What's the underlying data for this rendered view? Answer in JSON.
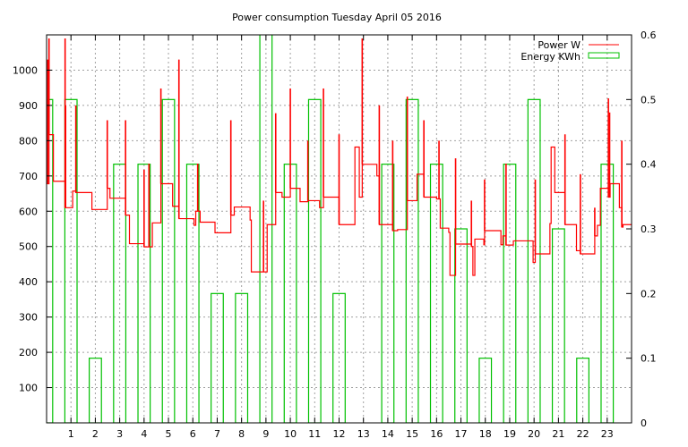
{
  "chart_data": {
    "type": "line",
    "title": "Power consumption Tuesday April 05 2016",
    "xlabel": "",
    "ylabel": "",
    "xlim": [
      0,
      24
    ],
    "ylim": [
      0,
      1100
    ],
    "y2lim": [
      0,
      0.6
    ],
    "grid": true,
    "legend_position": "top-right",
    "x_ticks": [
      "1",
      "2",
      "3",
      "4",
      "5",
      "6",
      "7",
      "8",
      "9",
      "10",
      "11",
      "12",
      "13",
      "14",
      "15",
      "16",
      "17",
      "18",
      "19",
      "20",
      "21",
      "22",
      "23"
    ],
    "y_ticks": [
      "100",
      "200",
      "300",
      "400",
      "500",
      "600",
      "700",
      "800",
      "900",
      "1000"
    ],
    "y2_ticks": [
      "0",
      "0.1",
      "0.2",
      "0.3",
      "0.4",
      "0.5",
      "0.6"
    ],
    "series": [
      {
        "name": "Power W",
        "color": "#ff0000",
        "axis": "left",
        "style": "steps",
        "steps": [
          [
            0,
            678
          ],
          [
            0.1,
            817
          ],
          [
            0.28,
            685
          ],
          [
            0.76,
            610
          ],
          [
            1.07,
            657
          ],
          [
            1.2,
            653
          ],
          [
            1.86,
            605
          ],
          [
            2.49,
            665
          ],
          [
            2.6,
            637
          ],
          [
            3.24,
            589
          ],
          [
            3.4,
            508
          ],
          [
            4.0,
            499
          ],
          [
            4.34,
            567
          ],
          [
            4.69,
            678
          ],
          [
            5.17,
            614
          ],
          [
            5.43,
            579
          ],
          [
            6.05,
            560
          ],
          [
            6.12,
            600
          ],
          [
            6.3,
            569
          ],
          [
            6.91,
            539
          ],
          [
            7.56,
            589
          ],
          [
            7.7,
            612
          ],
          [
            8.35,
            575
          ],
          [
            8.4,
            428
          ],
          [
            9.05,
            562
          ],
          [
            9.4,
            653
          ],
          [
            9.66,
            640
          ],
          [
            10.0,
            665
          ],
          [
            10.4,
            627
          ],
          [
            10.72,
            630
          ],
          [
            11.2,
            610
          ],
          [
            11.36,
            640
          ],
          [
            12.0,
            562
          ],
          [
            12.65,
            782
          ],
          [
            12.83,
            640
          ],
          [
            12.95,
            733
          ],
          [
            13.55,
            700
          ],
          [
            13.65,
            562
          ],
          [
            14.2,
            545
          ],
          [
            14.4,
            548
          ],
          [
            14.8,
            630
          ],
          [
            15.2,
            705
          ],
          [
            15.48,
            640
          ],
          [
            16.0,
            635
          ],
          [
            16.15,
            552
          ],
          [
            16.5,
            540
          ],
          [
            16.55,
            418
          ],
          [
            16.78,
            507
          ],
          [
            17.43,
            500
          ],
          [
            17.49,
            418
          ],
          [
            17.57,
            521
          ],
          [
            17.94,
            505
          ],
          [
            17.97,
            545
          ],
          [
            18.64,
            505
          ],
          [
            18.72,
            530
          ],
          [
            18.85,
            504
          ],
          [
            19.15,
            516
          ],
          [
            19.96,
            455
          ],
          [
            20.05,
            479
          ],
          [
            20.65,
            565
          ],
          [
            20.7,
            782
          ],
          [
            20.85,
            653
          ],
          [
            21.27,
            562
          ],
          [
            21.74,
            488
          ],
          [
            21.9,
            479
          ],
          [
            22.49,
            530
          ],
          [
            22.6,
            560
          ],
          [
            22.72,
            665
          ],
          [
            23.05,
            640
          ],
          [
            23.12,
            678
          ],
          [
            23.5,
            610
          ],
          [
            23.6,
            555
          ],
          [
            23.65,
            562
          ],
          [
            24,
            562
          ]
        ],
        "spikes": [
          [
            0.05,
            1030
          ],
          [
            0.1,
            1090
          ],
          [
            0.76,
            1090
          ],
          [
            0.78,
            900
          ],
          [
            1.2,
            900
          ],
          [
            2.49,
            858
          ],
          [
            3.24,
            858
          ],
          [
            4.0,
            718
          ],
          [
            4.2,
            735
          ],
          [
            4.69,
            948
          ],
          [
            5.43,
            1030
          ],
          [
            6.2,
            735
          ],
          [
            7.56,
            858
          ],
          [
            8.9,
            630
          ],
          [
            9.4,
            878
          ],
          [
            10.0,
            948
          ],
          [
            10.72,
            800
          ],
          [
            11.36,
            948
          ],
          [
            12.0,
            818
          ],
          [
            12.95,
            1090
          ],
          [
            13.65,
            900
          ],
          [
            14.2,
            800
          ],
          [
            14.8,
            925
          ],
          [
            15.48,
            858
          ],
          [
            16.1,
            800
          ],
          [
            16.78,
            750
          ],
          [
            17.43,
            630
          ],
          [
            17.97,
            690
          ],
          [
            18.85,
            735
          ],
          [
            20.05,
            690
          ],
          [
            21.27,
            818
          ],
          [
            21.9,
            705
          ],
          [
            22.49,
            610
          ],
          [
            23.05,
            920
          ],
          [
            23.1,
            880
          ],
          [
            23.6,
            800
          ]
        ]
      },
      {
        "name": "Energy KWh",
        "color": "#00c000",
        "axis": "right",
        "style": "boxes",
        "x": [
          0,
          1,
          2,
          3,
          4,
          5,
          6,
          7,
          8,
          9,
          10,
          11,
          12,
          13,
          14,
          15,
          16,
          17,
          18,
          19,
          20,
          21,
          22,
          23
        ],
        "values": [
          0.5,
          0.5,
          0.1,
          0.4,
          0.4,
          0.5,
          0.4,
          0.2,
          0.2,
          0.7,
          0.4,
          0.5,
          0.2,
          0,
          0.4,
          0.5,
          0.4,
          0.3,
          0.1,
          0.4,
          0.5,
          0.3,
          0.1,
          0.4
        ]
      }
    ]
  }
}
